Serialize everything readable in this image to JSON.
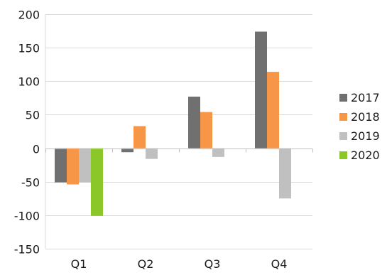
{
  "chart_data": {
    "type": "bar",
    "title": "",
    "xlabel": "",
    "ylabel": "",
    "categories": [
      "Q1",
      "Q2",
      "Q3",
      "Q4"
    ],
    "series": [
      {
        "name": "2017",
        "color": "#707070",
        "values": [
          -51,
          -6,
          77,
          174
        ]
      },
      {
        "name": "2018",
        "color": "#f79646",
        "values": [
          -54,
          33,
          54,
          114
        ]
      },
      {
        "name": "2019",
        "color": "#c0c0c0",
        "values": [
          -51,
          -16,
          -13,
          -75
        ]
      },
      {
        "name": "2020",
        "color": "#8bc728",
        "values": [
          -101,
          0,
          0,
          0
        ]
      }
    ],
    "ylim": [
      -150,
      200
    ],
    "yticks": [
      -150,
      -100,
      -50,
      0,
      50,
      100,
      150,
      200
    ],
    "ytick_labels": [
      "-150",
      "-100",
      "-50",
      "0",
      "50",
      "100",
      "150",
      "200"
    ],
    "grid": true,
    "legend_position": "right"
  }
}
